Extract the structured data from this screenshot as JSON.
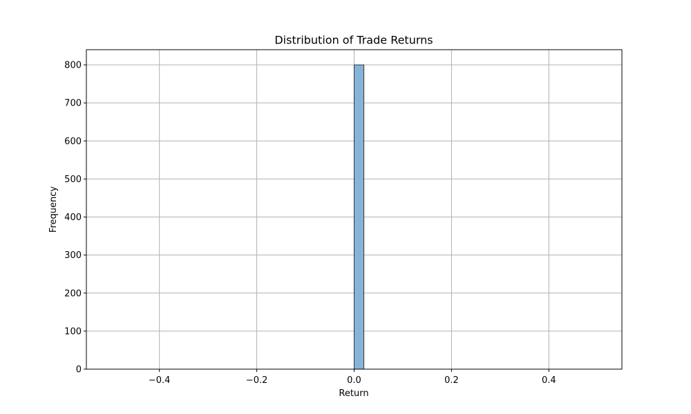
{
  "chart_data": {
    "type": "bar",
    "title": "Distribution of Trade Returns",
    "xlabel": "Return",
    "ylabel": "Frequency",
    "xlim": [
      -0.55,
      0.55
    ],
    "ylim": [
      0,
      840
    ],
    "xticks": [
      -0.4,
      -0.2,
      0.0,
      0.2,
      0.4
    ],
    "xtick_labels": [
      "−0.4",
      "−0.2",
      "0.0",
      "0.2",
      "0.4"
    ],
    "yticks": [
      0,
      100,
      200,
      300,
      400,
      500,
      600,
      700,
      800
    ],
    "ytick_labels": [
      "0",
      "100",
      "200",
      "300",
      "400",
      "500",
      "600",
      "700",
      "800"
    ],
    "grid": true,
    "bin_range": [
      -0.5,
      0.5
    ],
    "bin_width": 0.02,
    "bins": [
      {
        "x0": 0.0,
        "x1": 0.02,
        "value": 800
      }
    ],
    "bar_color": "#86b4d9",
    "bar_edge_color": "#333333"
  }
}
